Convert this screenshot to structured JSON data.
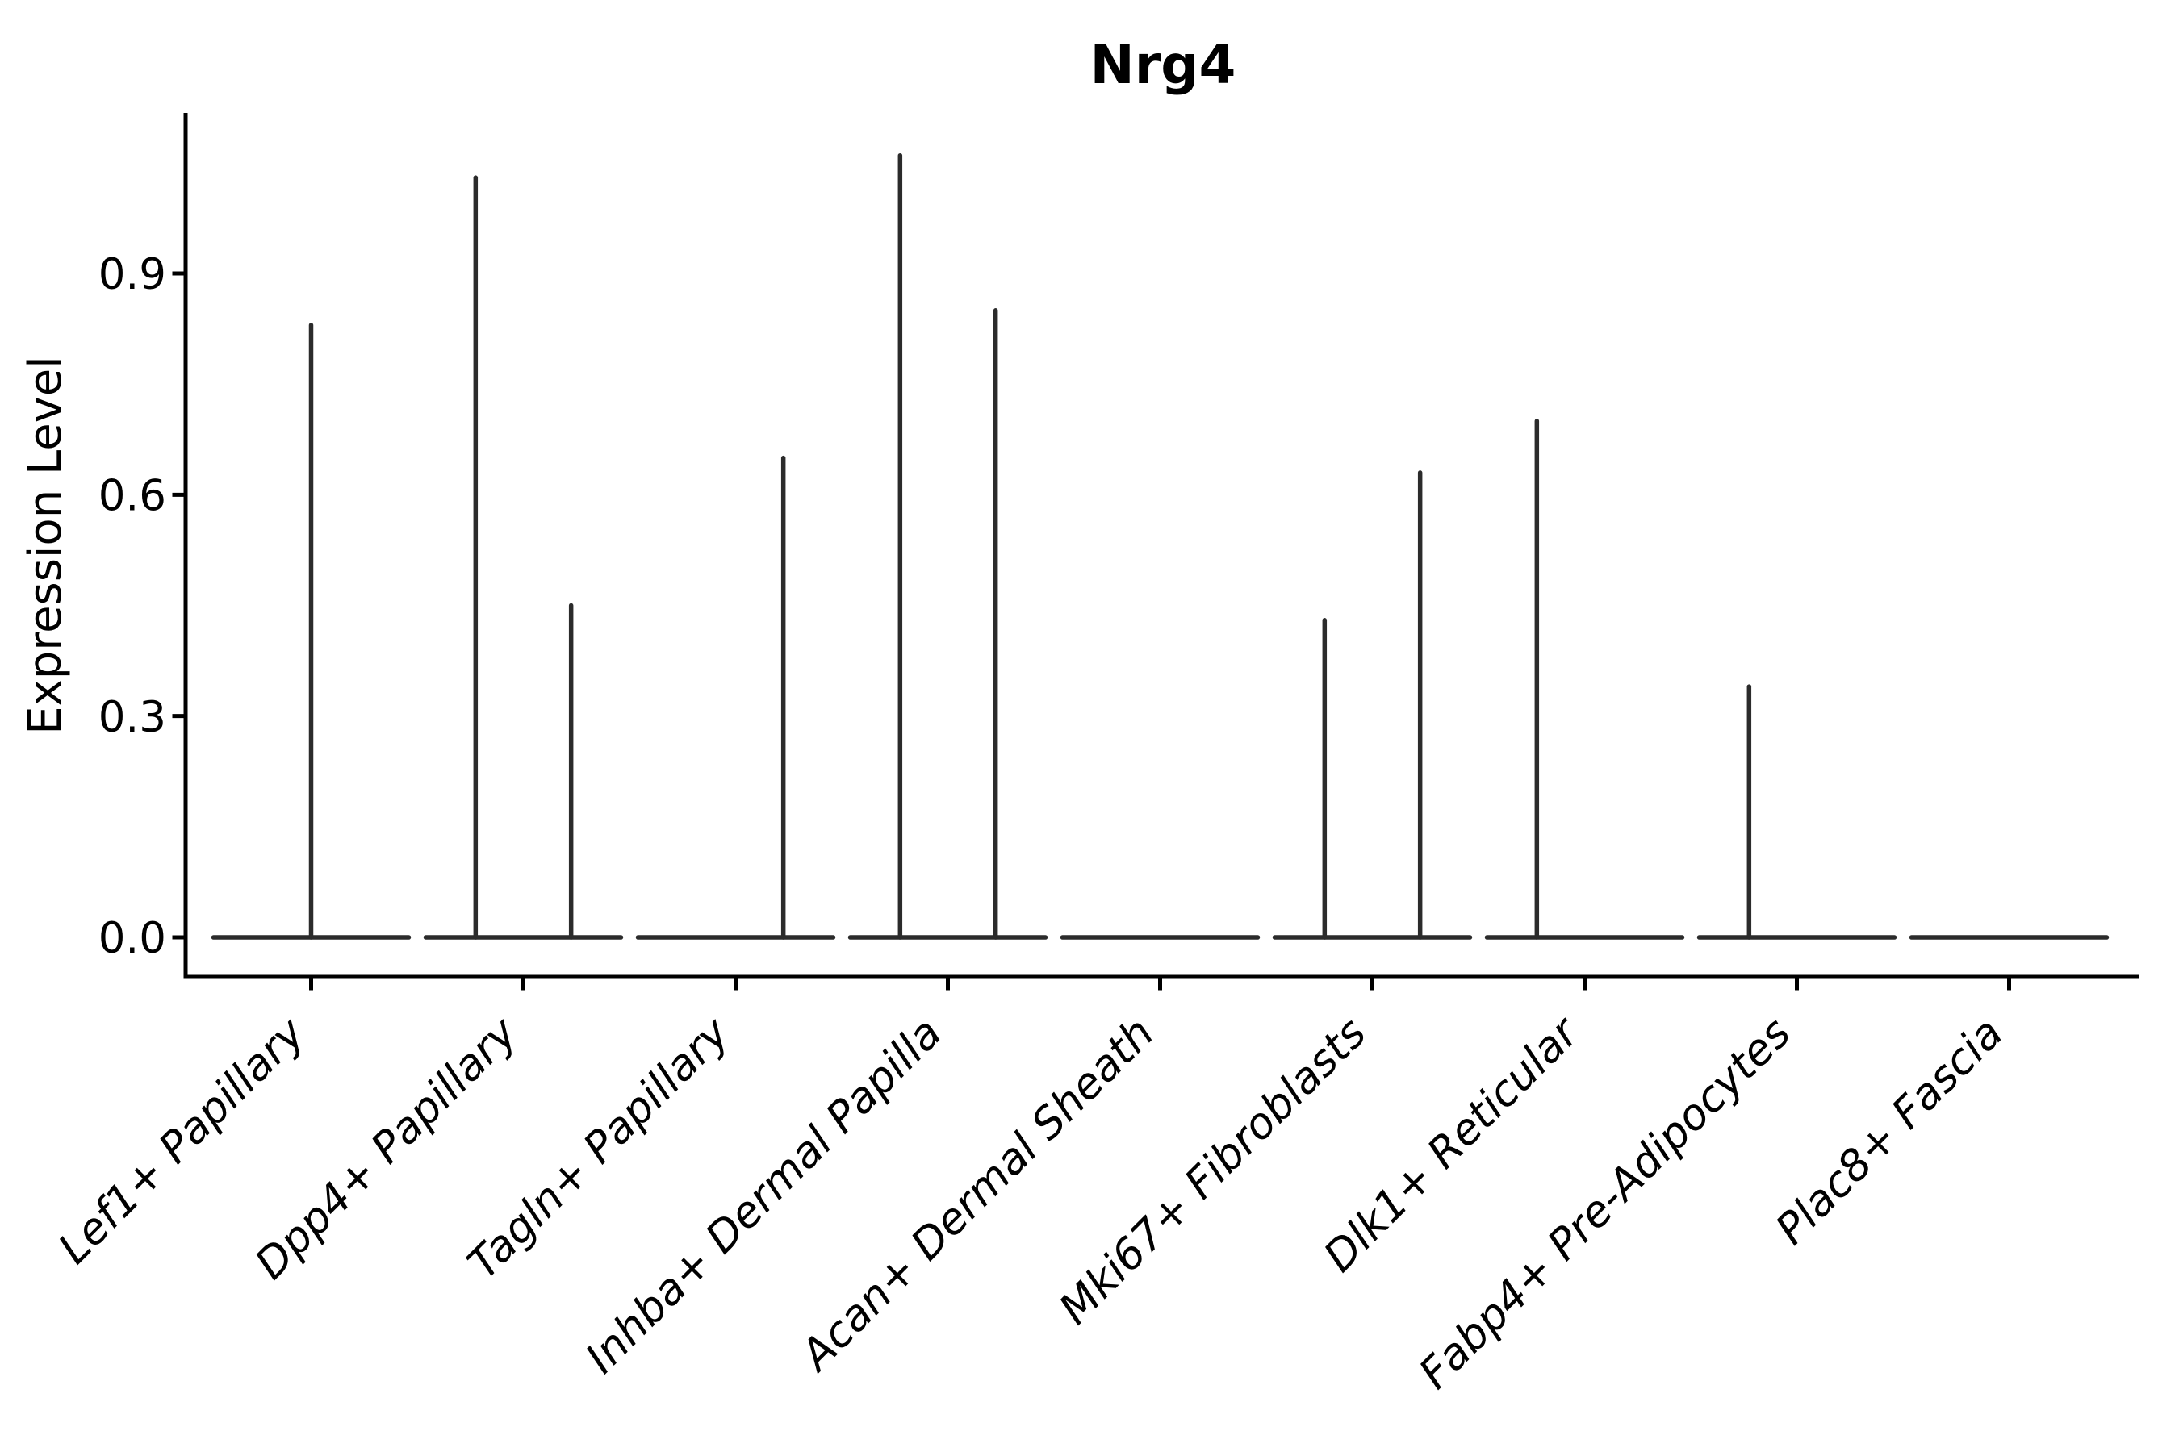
{
  "figure": {
    "title": "Nrg4"
  },
  "chart_data": {
    "type": "violin",
    "title": "Nrg4",
    "xlabel": "",
    "ylabel": "Expression Level",
    "categories": [
      "Lef1+ Papillary",
      "Dpp4+ Papillary",
      "Tagln+ Papillary",
      "Inhba+ Dermal Papilla",
      "Acan+ Dermal Sheath",
      "Mki67+ Fibroblasts",
      "Dlk1+ Reticular",
      "Fabp4+ Pre-Adipocytes",
      "Plac8+ Fascia"
    ],
    "yticks": [
      "0.0",
      "0.3",
      "0.6",
      "0.9"
    ],
    "ytick_values": [
      0.0,
      0.3,
      0.6,
      0.9
    ],
    "ylim": [
      -0.054,
      1.117
    ],
    "grid": false,
    "legend": null,
    "violins": [
      {
        "category": "Lef1+ Papillary",
        "base_halfwidth": 0.46,
        "spikes": [
          {
            "x_offset": 0.0,
            "max_value": 0.83
          }
        ]
      },
      {
        "category": "Dpp4+ Papillary",
        "base_halfwidth": 0.46,
        "spikes": [
          {
            "x_offset": -0.225,
            "max_value": 1.03
          },
          {
            "x_offset": 0.225,
            "max_value": 0.45
          }
        ]
      },
      {
        "category": "Tagln+ Papillary",
        "base_halfwidth": 0.46,
        "spikes": [
          {
            "x_offset": 0.225,
            "max_value": 0.65
          }
        ]
      },
      {
        "category": "Inhba+ Dermal Papilla",
        "base_halfwidth": 0.46,
        "spikes": [
          {
            "x_offset": -0.225,
            "max_value": 1.06
          },
          {
            "x_offset": 0.225,
            "max_value": 0.85
          }
        ]
      },
      {
        "category": "Acan+ Dermal Sheath",
        "base_halfwidth": 0.46,
        "spikes": []
      },
      {
        "category": "Mki67+ Fibroblasts",
        "base_halfwidth": 0.46,
        "spikes": [
          {
            "x_offset": -0.225,
            "max_value": 0.43
          },
          {
            "x_offset": 0.225,
            "max_value": 0.63
          }
        ]
      },
      {
        "category": "Dlk1+ Reticular",
        "base_halfwidth": 0.46,
        "spikes": [
          {
            "x_offset": -0.225,
            "max_value": 0.7
          }
        ]
      },
      {
        "category": "Fabp4+ Pre-Adipocytes",
        "base_halfwidth": 0.46,
        "spikes": [
          {
            "x_offset": -0.225,
            "max_value": 0.34
          }
        ]
      },
      {
        "category": "Plac8+ Fascia",
        "base_halfwidth": 0.46,
        "spikes": []
      }
    ],
    "colors": {
      "violin_stroke": "#2b2b2b",
      "axis": "#000000",
      "text": "#000000",
      "background": "#ffffff"
    }
  }
}
